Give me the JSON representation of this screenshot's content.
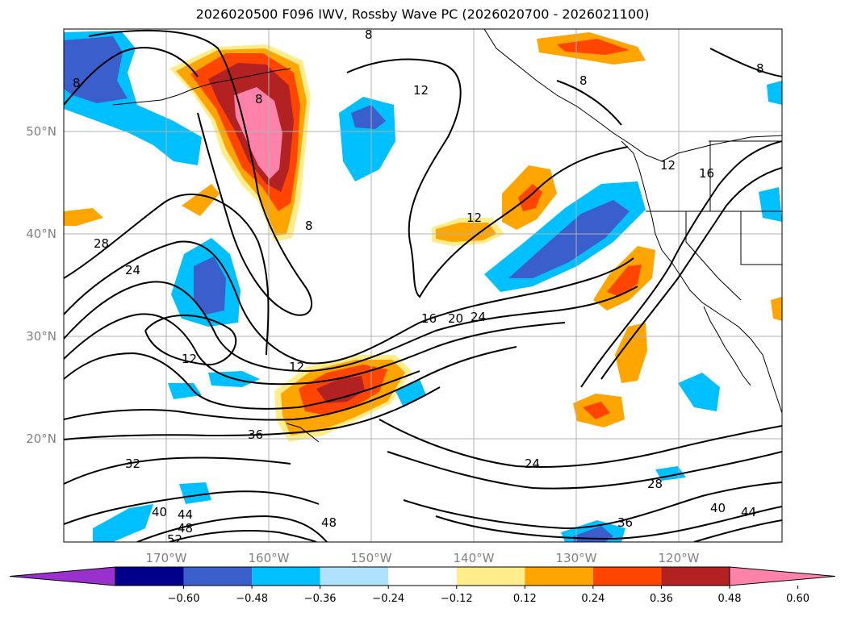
{
  "title": "2026020500 F096 IWV, Rossby Wave PC (2026020700 - 2026021100)",
  "lon_labels": [
    "170°W",
    "160°W",
    "150°W",
    "140°W",
    "130°W",
    "120°W"
  ],
  "lat_labels": [
    "50°N",
    "40°N",
    "30°N",
    "20°N"
  ],
  "contour_labels": [
    "8",
    "8",
    "8",
    "8",
    "8",
    "8",
    "12",
    "12",
    "12",
    "12",
    "12",
    "16",
    "16",
    "20",
    "24",
    "24",
    "24",
    "28",
    "28",
    "32",
    "36",
    "36",
    "40",
    "40",
    "44",
    "44",
    "48",
    "48",
    "52"
  ],
  "colorbar": {
    "ticks": [
      "−0.60",
      "−0.48",
      "−0.36",
      "−0.24",
      "−0.12",
      "0.12",
      "0.24",
      "0.36",
      "0.48",
      "0.60"
    ],
    "colors": [
      "#9932cc",
      "#00008b",
      "#3a5fcd",
      "#00bfff",
      "#b0e2ff",
      "#ffffff",
      "#ffec8b",
      "#ffa500",
      "#ff4500",
      "#b22222",
      "#ff82ab"
    ]
  },
  "palette": {
    "pink": "#ff82ab",
    "darkred": "#b22222",
    "red": "#ff4500",
    "orange": "#ffa500",
    "yellow": "#ffec8b",
    "lightblue": "#b0e2ff",
    "sky": "#00bfff",
    "blue": "#3a5fcd",
    "navy": "#00008b"
  }
}
